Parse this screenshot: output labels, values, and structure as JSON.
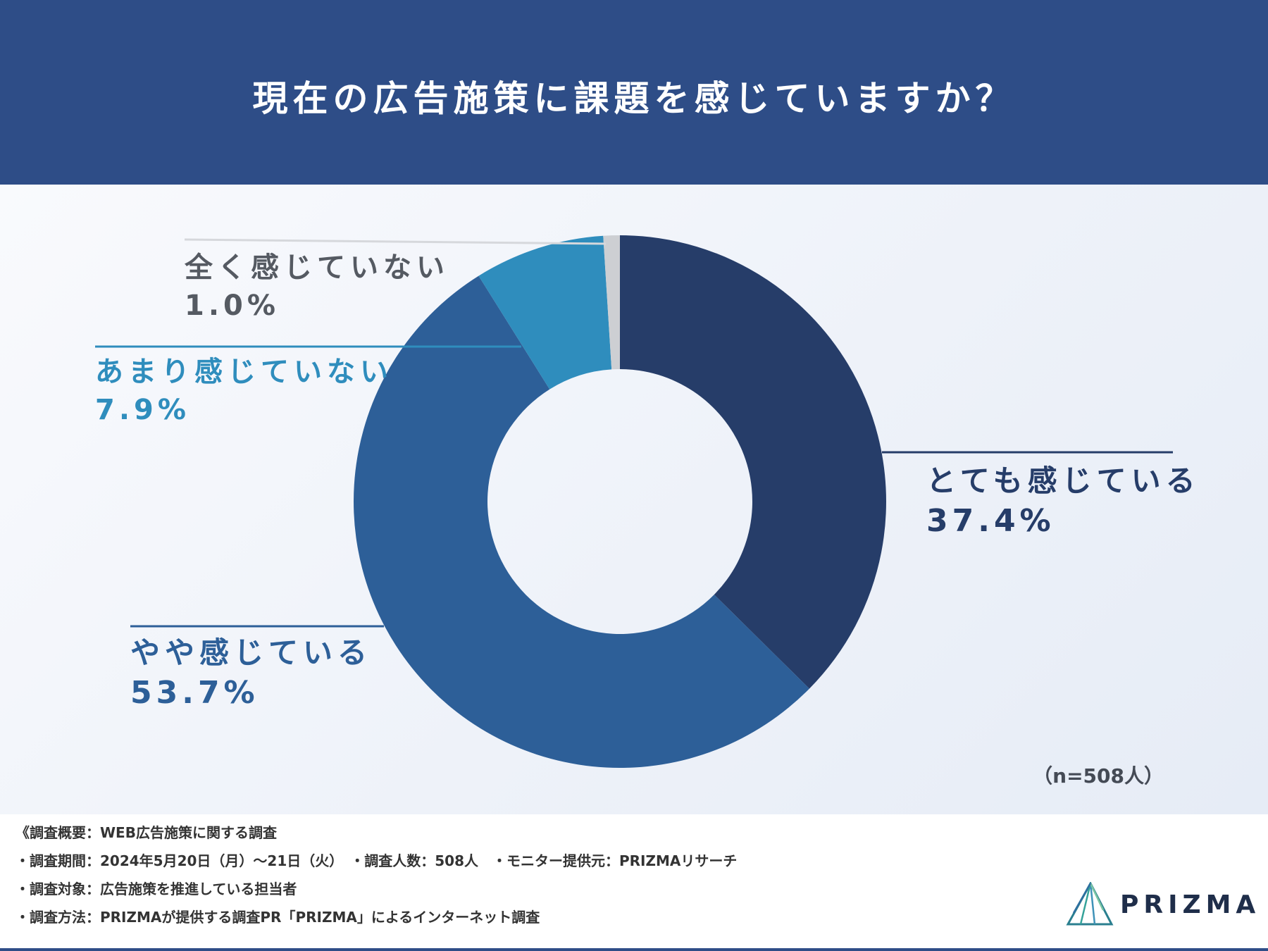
{
  "chart_data": {
    "type": "pie",
    "title": "現在の広告施策に課題を感じていますか？",
    "categories": [
      "とても感じている",
      "やや感じている",
      "あまり感じていない",
      "全く感じていない"
    ],
    "values": [
      37.4,
      53.7,
      7.9,
      1.0
    ],
    "value_labels": [
      "37.4%",
      "53.7%",
      "7.9%",
      "1.0%"
    ],
    "colors": [
      "#263d69",
      "#2d5f98",
      "#2f8dbd",
      "#cdcfd3"
    ],
    "donut": true,
    "sample_size_label": "（n=508人）"
  },
  "footer": {
    "notes": [
      "《調査概要：WEB広告施策に関する調査",
      "・調査期間：2024年5月20日（月）～21日（火）　・調査人数：508人　・モニター提供元：PRIZMAリサーチ",
      "・調査対象：広告施策を推進している担当者",
      "・調査方法：PRIZMAが提供する調査PR「PRIZMA」によるインターネット調査"
    ],
    "logo_text": "PRIZMA"
  }
}
